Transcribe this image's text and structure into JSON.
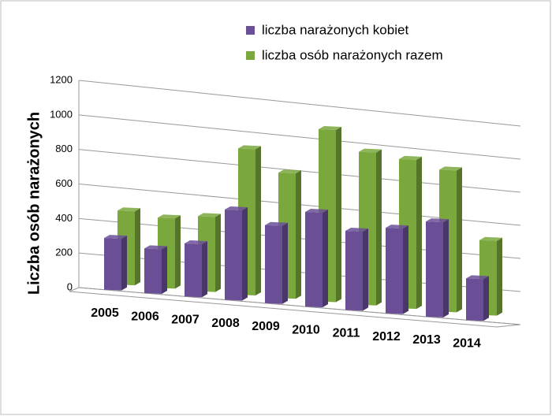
{
  "chart_data": {
    "type": "bar3d",
    "ylabel": "Liczba osób narażonych",
    "categories": [
      "2005",
      "2006",
      "2007",
      "2008",
      "2009",
      "2010",
      "2011",
      "2012",
      "2013",
      "2014"
    ],
    "series": [
      {
        "name": "liczba narażonych kobiet",
        "color": "#6a4f96",
        "values": [
          300,
          260,
          310,
          530,
          460,
          560,
          470,
          510,
          570,
          250
        ]
      },
      {
        "name": "liczba osób narażonych razem",
        "color": "#7aa83c",
        "values": [
          430,
          410,
          440,
          860,
          740,
          1020,
          910,
          890,
          850,
          450
        ]
      }
    ],
    "ylim": [
      0,
      1200
    ],
    "yticks": [
      0,
      200,
      400,
      600,
      800,
      1000,
      1200
    ],
    "grid": true
  }
}
